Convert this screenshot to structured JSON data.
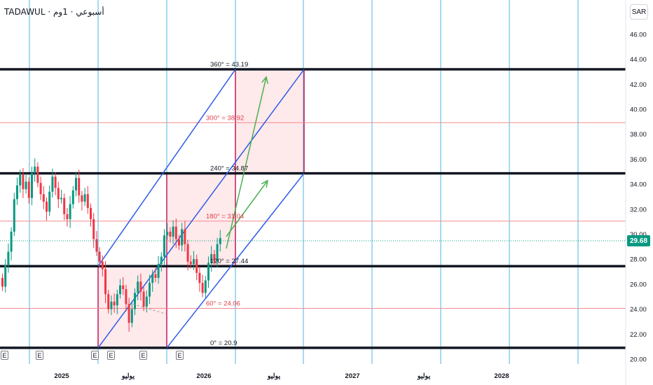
{
  "header": {
    "symbol_title": "TADAWUL · أسبوعي · 1وم",
    "currency": "SAR"
  },
  "colors": {
    "level_major": "#131722",
    "level_minor": "#f28a8f",
    "level_label_minor": "#e03e48",
    "vertical_grid": "#4fb6e0",
    "channel": "#2f5ce8",
    "box_fill": "rgba(242,54,69,0.11)",
    "box_border": "#c2185b",
    "arrow": "#4caf50",
    "candle_up": "#089981",
    "candle_down": "#f23645",
    "last_price": "#089981"
  },
  "price_scale": {
    "ticks": [
      "46.00",
      "44.00",
      "42.00",
      "40.00",
      "38.00",
      "36.00",
      "34.00",
      "32.00",
      "30.00",
      "28.00",
      "26.00",
      "24.00",
      "22.00",
      "20.00"
    ],
    "last_price": "29.68"
  },
  "time_scale": {
    "ticks": [
      "2025",
      "يوليو",
      "2026",
      "يوليو",
      "2027",
      "يوليو",
      "2028"
    ]
  },
  "gann_levels": [
    {
      "label": "360° = 43.19",
      "price": 43.19,
      "major": true
    },
    {
      "label": "300° = 38.92",
      "price": 38.92,
      "major": false
    },
    {
      "label": "240° = 34.87",
      "price": 34.87,
      "major": true
    },
    {
      "label": "180° = 31.04",
      "price": 31.04,
      "major": false
    },
    {
      "label": "120° = 27.44",
      "price": 27.44,
      "major": true
    },
    {
      "label": "60° = 24.06",
      "price": 24.06,
      "major": false
    },
    {
      "label": "0° = 20.9",
      "price": 20.9,
      "major": true
    }
  ],
  "events": [
    "E",
    "E",
    "E",
    "E",
    "E",
    "E"
  ]
}
